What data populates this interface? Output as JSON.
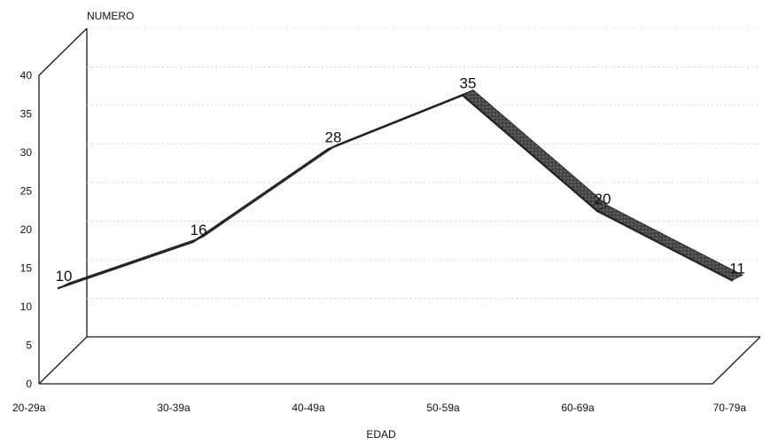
{
  "chart_data": {
    "type": "line",
    "title": "",
    "xlabel": "EDAD",
    "ylabel": "NUMERO",
    "categories": [
      "20-29a",
      "30-39a",
      "40-49a",
      "50-59a",
      "60-69a",
      "70-79a"
    ],
    "series": [
      {
        "values": [
          10,
          16,
          28,
          35,
          20,
          11
        ]
      }
    ],
    "data_labels": [
      "10",
      "16",
      "28",
      "35",
      "20",
      "11"
    ],
    "y_ticks": [
      "0",
      "5",
      "10",
      "15",
      "20",
      "25",
      "30",
      "35",
      "40"
    ],
    "ylim": [
      0,
      40
    ],
    "grid": true,
    "legend": "none",
    "style": "3d",
    "colors": {
      "line": "#222222",
      "ribbon": "#4a4a4a",
      "frame": "#1a1a1a",
      "grid": "#d6d6d6"
    }
  }
}
